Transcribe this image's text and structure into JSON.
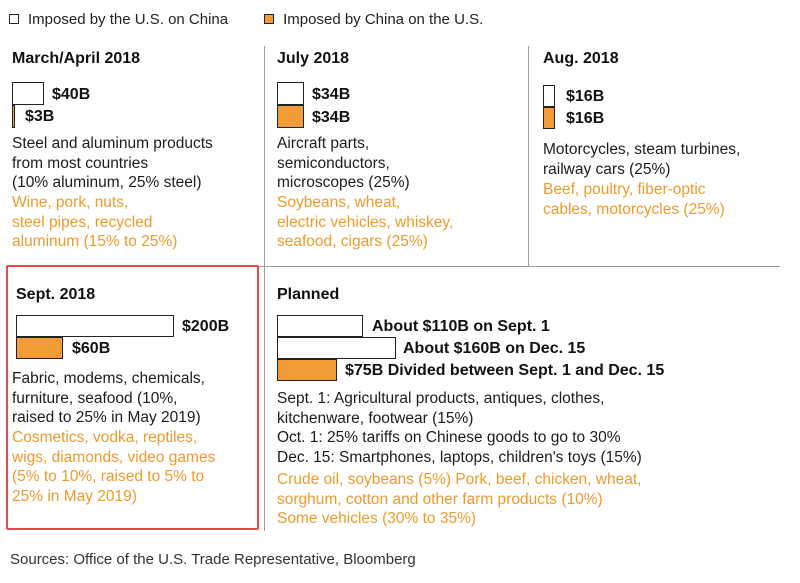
{
  "legend": {
    "us_label": "Imposed by the U.S. on China",
    "china_label": "Imposed by China on the U.S."
  },
  "colors": {
    "us": "#ffffff",
    "china": "#f39c37",
    "highlight": "#e84a4a"
  },
  "panels": {
    "mar_apr_2018": {
      "title": "March/April 2018",
      "us_value": "$40B",
      "china_value": "$3B",
      "us_text": "Steel and aluminum products\nfrom most countries\n(10% aluminum, 25% steel)",
      "china_text": "Wine, pork, nuts,\nsteel pipes, recycled\naluminum (15% to 25%)"
    },
    "jul_2018": {
      "title": "July 2018",
      "us_value": "$34B",
      "china_value": "$34B",
      "us_text": "Aircraft parts,\nsemiconductors,\nmicroscopes (25%)",
      "china_text": "Soybeans, wheat,\nelectric vehicles, whiskey,\nseafood, cigars (25%)"
    },
    "aug_2018": {
      "title": "Aug. 2018",
      "us_value": "$16B",
      "china_value": "$16B",
      "us_text": "Motorcycles, steam turbines,\nrailway cars (25%)",
      "china_text": "Beef, poultry, fiber-optic\ncables, motorcycles (25%)"
    },
    "sep_2018": {
      "title": "Sept. 2018",
      "us_value": "$200B",
      "china_value": "$60B",
      "us_text": "Fabric, modems, chemicals,\nfurniture, seafood (10%,\nraised to 25% in May 2019)",
      "china_text": "Cosmetics, vodka, reptiles,\nwigs, diamonds, video games\n(5% to 10%, raised to 5% to\n25% in May 2019)"
    },
    "planned": {
      "title": "Planned",
      "bar1_label": "About $110B on Sept. 1",
      "bar2_label": "About $160B on Dec. 15",
      "bar3_label": "$75B Divided between Sept. 1 and Dec. 15",
      "us_text": "Sept. 1: Agricultural products, antiques, clothes,\nkitchenware, footwear (15%)\nOct. 1: 25% tariffs on Chinese goods to go to 30%\nDec. 15: Smartphones, laptops, children's toys (15%)",
      "china_text": "Crude oil, soybeans (5%) Pork, beef, chicken, wheat,\nsorghum, cotton and other farm products (10%)\nSome vehicles (30% to 35%)"
    }
  },
  "chart_data": {
    "type": "bar",
    "title": "",
    "unit": "billion USD",
    "categories": [
      "March/April 2018",
      "July 2018",
      "Aug. 2018",
      "Sept. 2018",
      "Planned"
    ],
    "series": [
      {
        "name": "Imposed by the U.S. on China",
        "values": [
          40,
          34,
          16,
          200,
          null
        ]
      },
      {
        "name": "Imposed by China on the U.S.",
        "values": [
          3,
          34,
          16,
          60,
          null
        ]
      }
    ],
    "planned": [
      {
        "series": "Imposed by the U.S. on China",
        "value": 110,
        "label": "About $110B on Sept. 1"
      },
      {
        "series": "Imposed by the U.S. on China",
        "value": 160,
        "label": "About $160B on Dec. 15"
      },
      {
        "series": "Imposed by China on the U.S.",
        "value": 75,
        "label": "$75B Divided between Sept. 1 and Dec. 15"
      }
    ],
    "orientation": "horizontal",
    "legend_position": "top-left",
    "grid": false
  },
  "source": "Sources: Office of the U.S. Trade Representative, Bloomberg"
}
